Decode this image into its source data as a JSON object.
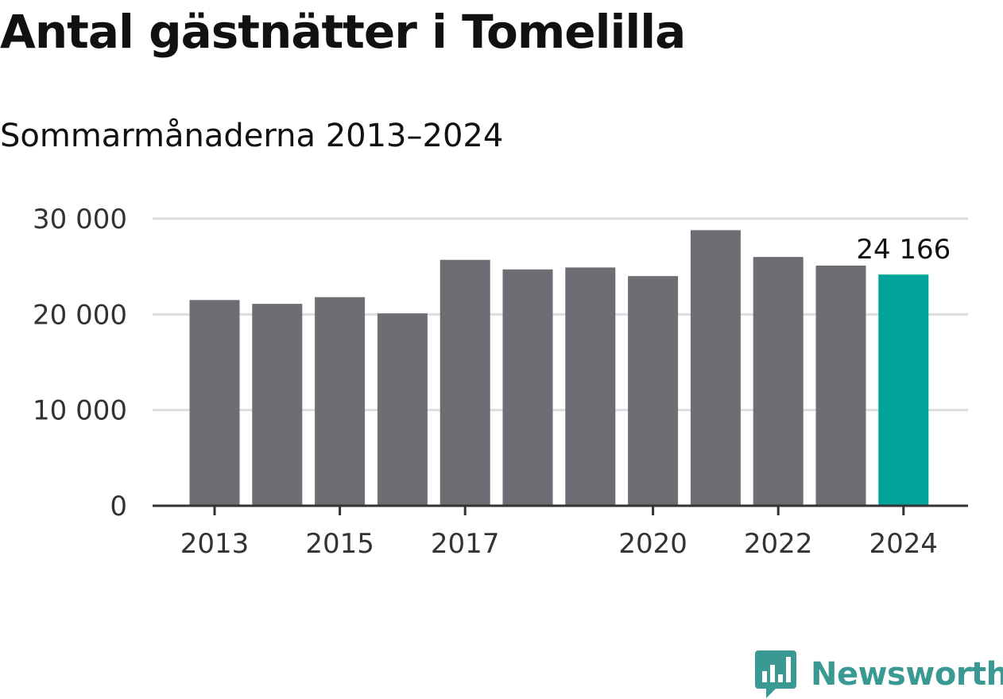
{
  "title": "Antal gästnätter i Tomelilla",
  "subtitle": "Sommarmånaderna 2013–2024",
  "logo": {
    "text": "Newsworthy",
    "icon": "newsworthy-logo-icon"
  },
  "colors": {
    "bar": "#6e6d73",
    "highlight": "#00a39a",
    "grid": "#dddddd",
    "axis": "#333333",
    "logo": "#3a9a93"
  },
  "chart_data": {
    "type": "bar",
    "title": "Antal gästnätter i Tomelilla",
    "subtitle": "Sommarmånaderna 2013–2024",
    "xlabel": "",
    "ylabel": "",
    "categories": [
      "2013",
      "2014",
      "2015",
      "2016",
      "2017",
      "2018",
      "2019",
      "2020",
      "2021",
      "2022",
      "2023",
      "2024"
    ],
    "values": [
      21500,
      21100,
      21800,
      20100,
      25700,
      24700,
      24900,
      24000,
      28800,
      26000,
      25100,
      24166
    ],
    "highlight_index": 11,
    "ylim": [
      0,
      30000
    ],
    "yticks": [
      0,
      10000,
      20000,
      30000
    ],
    "ytick_labels": [
      "0",
      "10 000",
      "20 000",
      "30 000"
    ],
    "xtick_labels": [
      "2013",
      "2015",
      "2017",
      "2020",
      "2022",
      "2024"
    ],
    "data_labels": [
      {
        "category": "2024",
        "text": "24 166"
      }
    ],
    "grid": true,
    "legend": "none"
  }
}
